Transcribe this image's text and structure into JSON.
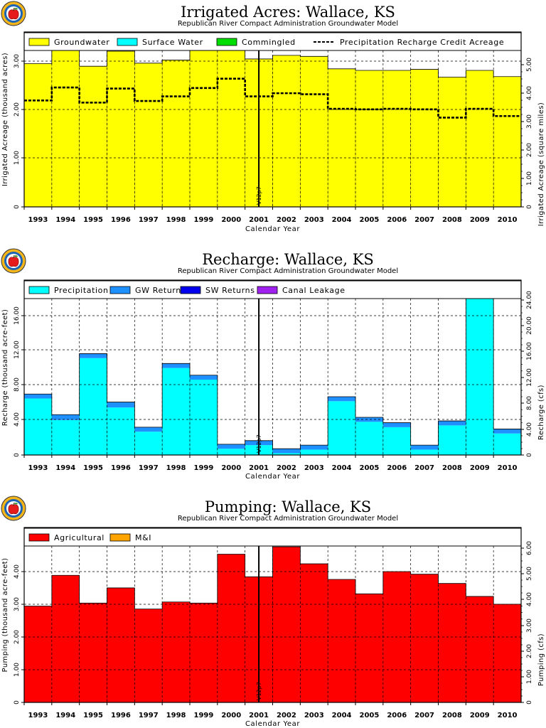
{
  "chart_data": [
    {
      "type": "bar",
      "title": "Irrigated Acres: Wallace, KS",
      "subtitle": "Republican River Compact Administration Groundwater Model",
      "xlabel": "Calendar Year",
      "ylabel": "Irrigated Acreage (thousand acres)",
      "y2label": "Irrigated Acreage (square miles)",
      "ylim": [
        0,
        3.37
      ],
      "y2lim": [
        0,
        5.27
      ],
      "yticks": [
        "0",
        "1.00",
        "2.00",
        "3.00"
      ],
      "y2ticks": [
        "0",
        "1.00",
        "2.00",
        "3.00",
        "4.00",
        "5.00"
      ],
      "categories": [
        "1993",
        "1994",
        "1995",
        "1996",
        "1997",
        "1998",
        "1999",
        "2000",
        "2001",
        "2002",
        "2003",
        "2004",
        "2005",
        "2006",
        "2007",
        "2008",
        "2009",
        "2010"
      ],
      "series": [
        {
          "name": "Groundwater",
          "color": "#ffff00",
          "values": [
            2.76,
            3.02,
            2.71,
            3.0,
            2.77,
            2.83,
            3.03,
            3.21,
            2.85,
            2.92,
            2.9,
            2.66,
            2.63,
            2.63,
            2.65,
            2.5,
            2.63,
            2.51
          ]
        },
        {
          "name": "Surface Water",
          "color": "#00ffff",
          "values": [
            0,
            0,
            0,
            0,
            0,
            0,
            0,
            0,
            0,
            0,
            0,
            0,
            0,
            0,
            0,
            0,
            0,
            0
          ]
        },
        {
          "name": "Commingled",
          "color": "#00dd00",
          "values": [
            0,
            0,
            0,
            0,
            0,
            0,
            0,
            0,
            0,
            0,
            0,
            0,
            0,
            0,
            0,
            0,
            0,
            0
          ]
        }
      ],
      "line_series": {
        "name": "Precipitation Recharge Credit Acreage",
        "style": "dashed",
        "values": [
          2.05,
          2.3,
          2.01,
          2.28,
          2.04,
          2.13,
          2.29,
          2.47,
          2.13,
          2.19,
          2.17,
          1.89,
          1.88,
          1.89,
          1.88,
          1.72,
          1.89,
          1.75
        ]
      },
      "marker_label": "V12p7",
      "grid": true,
      "legend_position": "top"
    },
    {
      "type": "bar",
      "title": "Recharge: Wallace, KS",
      "subtitle": "Republican River Compact Administration Groundwater Model",
      "xlabel": "Calendar Year",
      "ylabel": "Recharge (thousand acre-feet)",
      "y2label": "Recharge (cfs)",
      "ylim": [
        0,
        19.5
      ],
      "y2lim": [
        0,
        26.9
      ],
      "yticks": [
        "0",
        "4.00",
        "8.00",
        "12.00",
        "16.00"
      ],
      "y2ticks": [
        "0",
        "4.00",
        "8.00",
        "12.00",
        "16.00",
        "20.00",
        "24.00"
      ],
      "categories": [
        "1993",
        "1994",
        "1995",
        "1996",
        "1997",
        "1998",
        "1999",
        "2000",
        "2001",
        "2002",
        "2003",
        "2004",
        "2005",
        "2006",
        "2007",
        "2008",
        "2009",
        "2010"
      ],
      "series": [
        {
          "name": "Precipitation",
          "color": "#00ffff",
          "values": [
            6.3,
            3.9,
            10.8,
            5.3,
            2.6,
            9.7,
            8.4,
            0.7,
            1.1,
            0.2,
            0.6,
            6.0,
            3.7,
            3.1,
            0.6,
            3.3,
            19.0,
            2.4
          ]
        },
        {
          "name": "GW Returns",
          "color": "#1e90ff",
          "values": [
            0.5,
            0.6,
            0.5,
            0.6,
            0.5,
            0.5,
            0.5,
            0.5,
            0.5,
            0.5,
            0.5,
            0.5,
            0.5,
            0.5,
            0.5,
            0.5,
            0.5,
            0.5
          ]
        },
        {
          "name": "SW Returns",
          "color": "#0000ee",
          "values": [
            0,
            0,
            0,
            0,
            0,
            0,
            0,
            0,
            0,
            0,
            0,
            0,
            0,
            0,
            0,
            0,
            0,
            0
          ]
        },
        {
          "name": "Canal Leakage",
          "color": "#a020f0",
          "values": [
            0,
            0,
            0,
            0,
            0,
            0,
            0,
            0,
            0,
            0,
            0,
            0,
            0,
            0,
            0,
            0,
            0,
            0
          ]
        }
      ],
      "marker_label": "V12p7",
      "grid": true,
      "legend_position": "top"
    },
    {
      "type": "bar",
      "title": "Pumping: Wallace, KS",
      "subtitle": "Republican River Compact Administration Groundwater Model",
      "xlabel": "Calendar Year",
      "ylabel": "Pumping (thousand acre-feet)",
      "y2label": "Pumping (cfs)",
      "ylim": [
        0,
        4.72
      ],
      "y2lim": [
        0,
        6.52
      ],
      "yticks": [
        "0",
        "1.00",
        "2.00",
        "3.00",
        "4.00"
      ],
      "y2ticks": [
        "0",
        "1.00",
        "2.00",
        "3.00",
        "4.00",
        "5.00",
        "6.00"
      ],
      "categories": [
        "1993",
        "1994",
        "1995",
        "1996",
        "1997",
        "1998",
        "1999",
        "2000",
        "2001",
        "2002",
        "2003",
        "2004",
        "2005",
        "2006",
        "2007",
        "2008",
        "2009",
        "2010"
      ],
      "series": [
        {
          "name": "Agricultural",
          "color": "#ff0000",
          "values": [
            2.6,
            3.43,
            2.68,
            3.09,
            2.52,
            2.71,
            2.68,
            4.0,
            3.39,
            4.2,
            3.74,
            3.32,
            2.93,
            3.53,
            3.46,
            3.21,
            2.86,
            2.65
          ]
        },
        {
          "name": "M&I",
          "color": "#ffa500",
          "values": [
            0,
            0,
            0,
            0,
            0,
            0,
            0,
            0,
            0,
            0,
            0,
            0,
            0,
            0,
            0,
            0,
            0,
            0
          ]
        }
      ],
      "marker_label": "V12p7",
      "grid": true,
      "legend_position": "top"
    }
  ]
}
